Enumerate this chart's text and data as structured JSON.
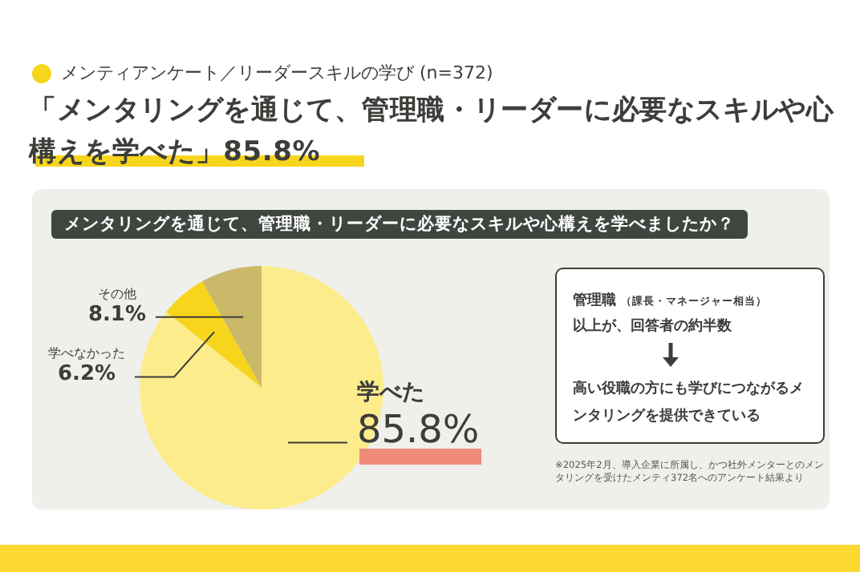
{
  "chart_data": {
    "type": "pie",
    "subtitle": "メンティアンケート／リーダースキルの学び (n=372)",
    "title": "「メンタリングを通じて、管理職・リーダーに必要なスキルや心構えを学べた」85.8%",
    "xlabel": "メンタリングを通じて、管理職・リーダーに必要なスキルや心構えを学べましたか？",
    "categories": [
      "学べた",
      "学べなかった",
      "その他"
    ],
    "values": [
      85.8,
      6.2,
      8.1
    ],
    "colors": [
      "#fcec8c",
      "#f7d51d",
      "#c9b968"
    ],
    "value_labels": [
      "85.8%",
      "6.2%",
      "8.1%"
    ],
    "annotations": [
      "管理職",
      "（課長・マネージャー相当）",
      "以上が、回答者の約半数",
      "高い役職の方にも学びにつながるメンタリングを提供できている",
      "※2025年2月、導入企業に所属し、かつ社外メンターとのメンタリングを受けたメンティ372名へのアンケート結果より"
    ]
  }
}
